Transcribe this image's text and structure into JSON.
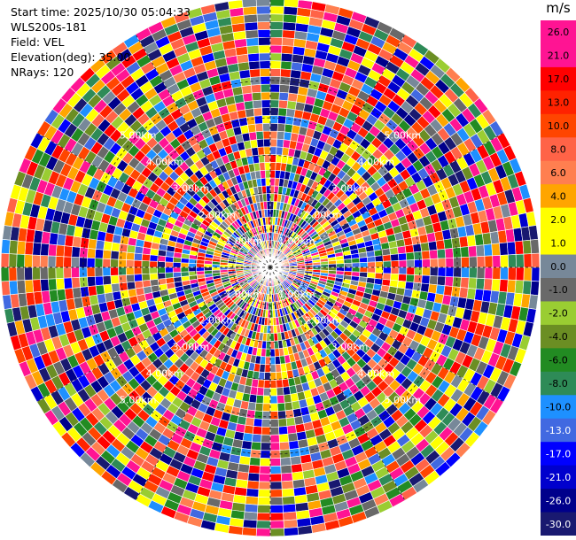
{
  "info": {
    "start_time": "Start time: 2025/10/30 05:04:33",
    "station": "WLS200s-181",
    "field": "Field: VEL",
    "elevation": "Elevation(deg): 35.00",
    "nrays": "NRays: 120"
  },
  "chart_data": {
    "type": "heatmap",
    "projection": "polar",
    "field": "VEL",
    "n_rays": 120,
    "range_ring_labels": [
      "1.00km",
      "2.00km",
      "3.00km",
      "4.00km",
      "5.00km"
    ],
    "range_rings_km": [
      1,
      2,
      3,
      4,
      5
    ],
    "max_range_km": 7.2,
    "colorbar": {
      "unit": "m/s",
      "ticks": [
        "26.0",
        "21.0",
        "17.0",
        "13.0",
        "10.0",
        "8.0",
        "6.0",
        "4.0",
        "2.0",
        "1.0",
        "0.0",
        "-1.0",
        "-2.0",
        "-4.0",
        "-6.0",
        "-8.0",
        "-10.0",
        "-13.0",
        "-17.0",
        "-21.0",
        "-26.0",
        "-30.0"
      ],
      "colors": [
        "#ff1493",
        "#ff1493",
        "#ff0000",
        "#ff2200",
        "#ff4500",
        "#ff6347",
        "#ff7f50",
        "#ffa500",
        "#ffff00",
        "#ffff00",
        "#778899",
        "#696969",
        "#9acd32",
        "#6b8e23",
        "#228b22",
        "#2e8b57",
        "#1e90ff",
        "#4169e1",
        "#0000ff",
        "#0000cd",
        "#00008b",
        "#191970"
      ]
    }
  }
}
